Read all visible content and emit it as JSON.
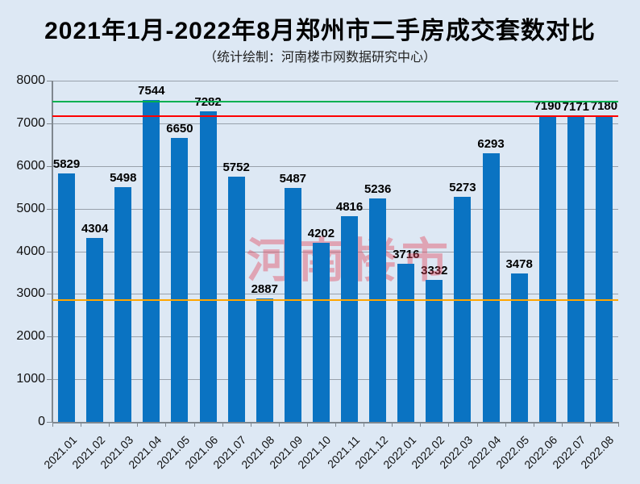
{
  "title": "2021年1月-2022年8月郑州市二手房成交套数对比",
  "subtitle": "（统计绘制：河南楼市网数据研究中心）",
  "watermark": "河南楼市",
  "colors": {
    "background": "#dde8f4",
    "bar": "#0a73c2",
    "grid": "#98a1ab",
    "axis": "#7f878f",
    "text": "#000000",
    "watermark": "rgba(226,69,90,0.42)",
    "ref_green": "#00b050",
    "ref_red": "#fe0000",
    "ref_orange": "#ffa500"
  },
  "chart_data": {
    "type": "bar",
    "title": "2021年1月-2022年8月郑州市二手房成交套数对比",
    "subtitle": "（统计绘制：河南楼市网数据研究中心）",
    "categories": [
      "2021.01",
      "2021.02",
      "2021.03",
      "2021.04",
      "2021.05",
      "2021.06",
      "2021.07",
      "2021.08",
      "2021.09",
      "2021.10",
      "2021.11",
      "2021.12",
      "2022.01",
      "2022.02",
      "2022.03",
      "2022.04",
      "2022.05",
      "2022.06",
      "2022.07",
      "2022.08"
    ],
    "values": [
      5829,
      4304,
      5498,
      7544,
      6650,
      7282,
      5752,
      2887,
      5487,
      4202,
      4816,
      5236,
      3716,
      3332,
      5273,
      6293,
      3478,
      7190,
      7171,
      7180
    ],
    "xlabel": "",
    "ylabel": "",
    "ylim": [
      0,
      8000
    ],
    "ytick_step": 1000,
    "grid": true,
    "legend": false,
    "data_labels": true,
    "reference_lines": [
      {
        "name": "green",
        "value": 7505
      },
      {
        "name": "red",
        "value": 7171
      },
      {
        "name": "orange",
        "value": 2860
      }
    ]
  }
}
